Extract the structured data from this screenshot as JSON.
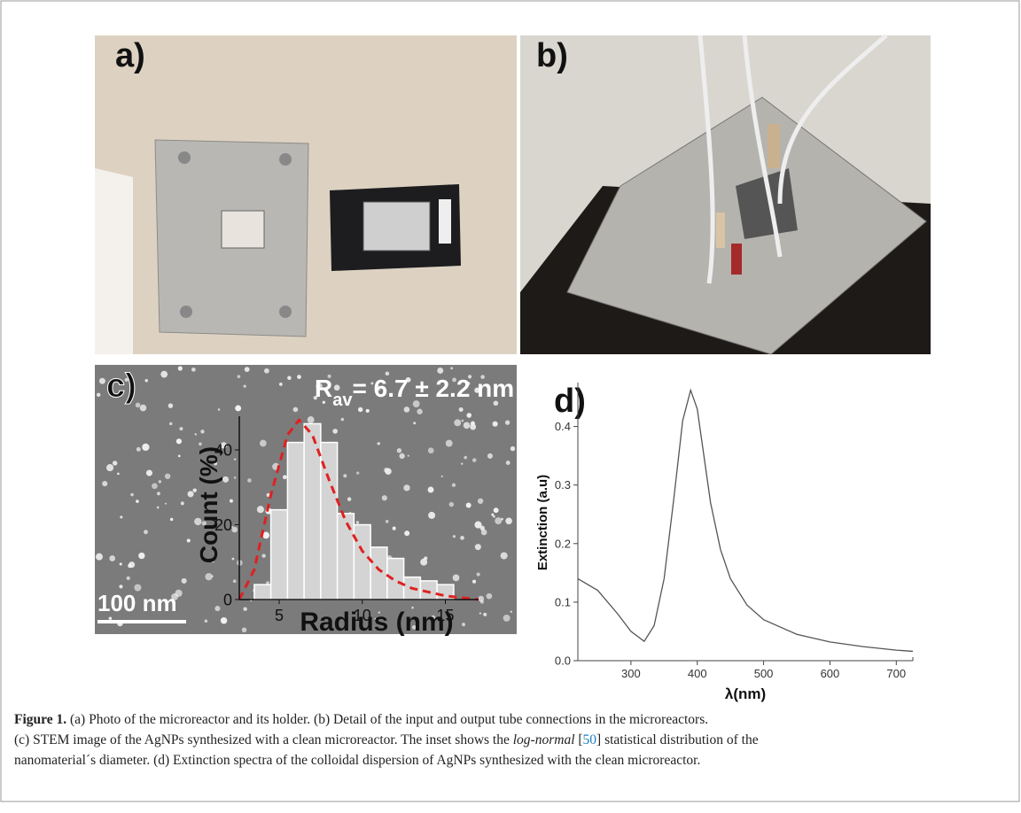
{
  "panel_labels": {
    "a": "a)",
    "b": "b)",
    "c": "c)",
    "d": "d)"
  },
  "stem": {
    "annotation": [
      "R",
      "av",
      "= 6.7 ± 2.2  nm"
    ],
    "scale_bar": "100 nm"
  },
  "chart_data": [
    {
      "type": "histogram",
      "bins": [
        3.5,
        4.5,
        5.5,
        6.5,
        7.5,
        8.5,
        9.5,
        10.5,
        11.5,
        12.5,
        13.5,
        14.5,
        15.5
      ],
      "values": [
        4,
        24,
        42,
        47,
        42,
        23,
        20,
        14,
        11,
        6,
        5,
        4
      ],
      "color": "#d4d4d4",
      "fit": {
        "color": "#e02020",
        "x": [
          2.6,
          3.5,
          4.5,
          5.5,
          6.2,
          7,
          8,
          9,
          10,
          11,
          12,
          13,
          14,
          15,
          16,
          17
        ],
        "y": [
          0,
          8,
          28,
          44,
          48,
          44,
          32,
          21,
          13,
          8,
          5,
          3,
          2,
          1,
          0.5,
          0
        ]
      },
      "xlabel": "Radius (nm)",
      "ylabel": "Count (%)",
      "xlim": [
        2.6,
        17
      ],
      "ylim": [
        0,
        49
      ],
      "xticks": [
        5,
        10,
        15
      ],
      "yticks": [
        0,
        20,
        40
      ]
    },
    {
      "type": "line",
      "x": [
        220,
        250,
        280,
        300,
        320,
        335,
        350,
        365,
        378,
        390,
        400,
        410,
        420,
        435,
        450,
        475,
        500,
        550,
        600,
        650,
        700,
        725
      ],
      "series": [
        {
          "color": "#555555",
          "values": [
            0.14,
            0.12,
            0.08,
            0.05,
            0.033,
            0.06,
            0.14,
            0.28,
            0.41,
            0.462,
            0.43,
            0.35,
            0.27,
            0.19,
            0.14,
            0.095,
            0.07,
            0.045,
            0.032,
            0.024,
            0.018,
            0.016
          ]
        }
      ],
      "xlabel": "λ(nm)",
      "ylabel": "Extinction (a.u)",
      "xlim": [
        220,
        725
      ],
      "ylim": [
        0,
        0.475
      ],
      "xticks": [
        300,
        400,
        500,
        600,
        700
      ],
      "yticks": [
        {
          "value": 0,
          "label": "0.0"
        },
        0.1,
        0.2,
        0.3,
        0.4
      ]
    }
  ],
  "caption": {
    "label": "Figure 1.",
    "segments": [
      " (a) Photo of the microreactor and its holder. (b) Detail of the input and output tube connections in the microreactors.",
      "(c) STEM image of the AgNPs synthesized with a clean microreactor. The inset shows the ",
      "log-normal",
      " [",
      "50",
      "] statistical distribution of the",
      "nanomaterial´s diameter. (d) Extinction spectra of the colloidal dispersion of AgNPs synthesized with the clean microreactor."
    ]
  }
}
